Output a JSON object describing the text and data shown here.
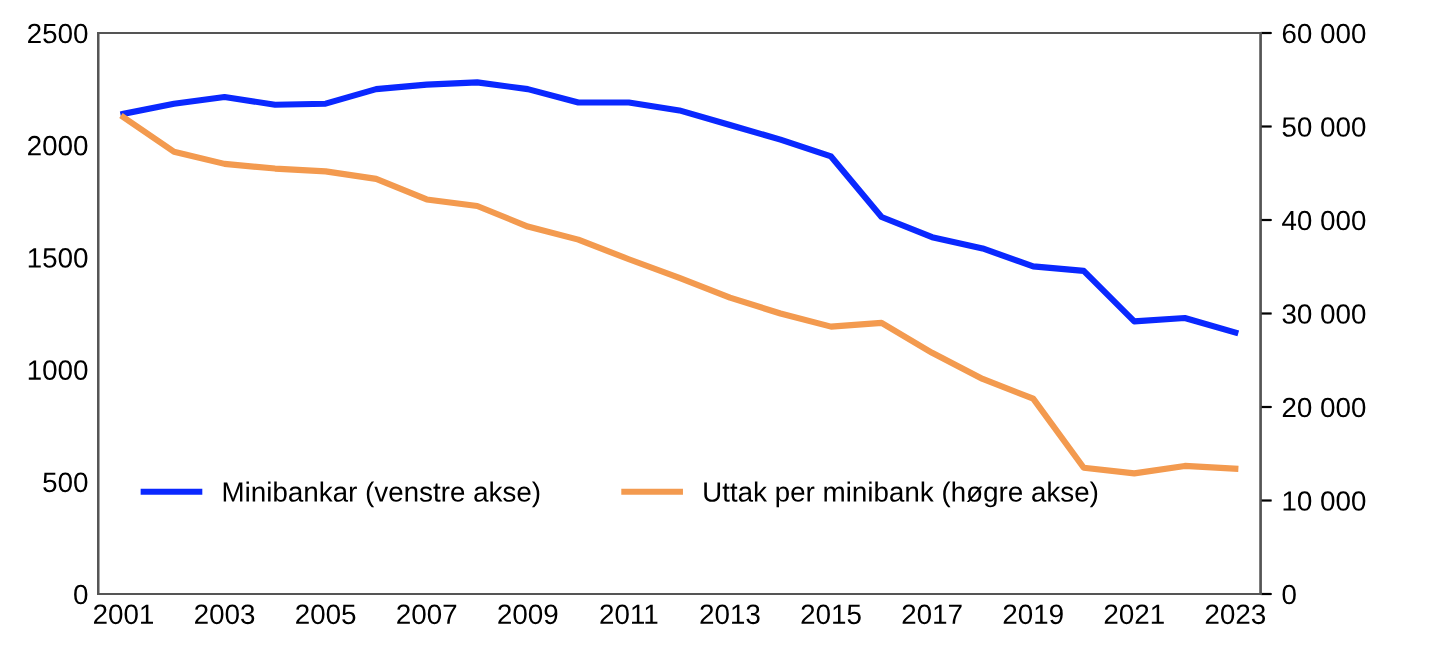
{
  "chart_data": {
    "type": "line",
    "categories": [
      "2001",
      null,
      "2003",
      null,
      "2005",
      null,
      "2007",
      null,
      "2009",
      null,
      "2011",
      null,
      "2013",
      null,
      "2015",
      null,
      "2017",
      null,
      "2019",
      null,
      "2021",
      null,
      "2023"
    ],
    "series": [
      {
        "name": "Minibankar (venstre akse)",
        "color": "#0a28ff",
        "values": [
          2140,
          2185,
          2215,
          2180,
          2185,
          2250,
          2270,
          2280,
          2250,
          2190,
          2190,
          2155,
          2090,
          2025,
          1950,
          1680,
          1590,
          1540,
          1460,
          1440,
          1215,
          1230,
          1165
        ]
      },
      {
        "name": "Uttak per minibank (høgre akse)",
        "color": "#f39a4f",
        "axis": "y2",
        "values": [
          51000,
          47300,
          46000,
          45500,
          45200,
          44400,
          42200,
          41500,
          39300,
          37900,
          35800,
          33800,
          31700,
          30000,
          28600,
          29000,
          25800,
          23000,
          20900,
          13500,
          12900,
          13700,
          13400
        ]
      }
    ],
    "ylim": [
      0,
      2500
    ],
    "yticks": [
      0,
      500,
      1000,
      1500,
      2000,
      2500
    ],
    "y2lim": [
      0,
      60000
    ],
    "y2ticks": [
      0,
      {
        "value": 10000,
        "label": "10 000"
      },
      {
        "value": 20000,
        "label": "20 000"
      },
      {
        "value": 30000,
        "label": "30 000"
      },
      {
        "value": 40000,
        "label": "40 000"
      },
      {
        "value": 50000,
        "label": "50 000"
      },
      {
        "value": 60000,
        "label": "60 000"
      }
    ],
    "legend": "bottom",
    "grid": false,
    "marker": "none",
    "line_style": "solid"
  }
}
